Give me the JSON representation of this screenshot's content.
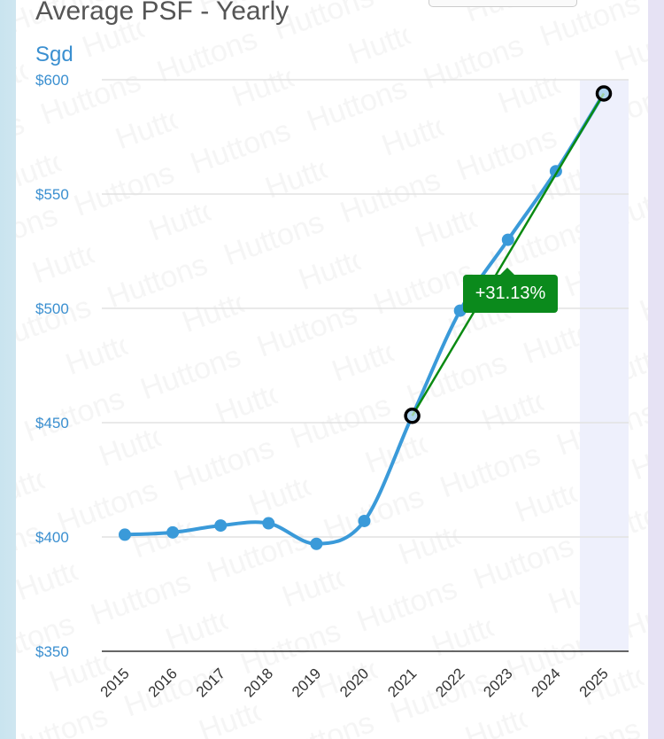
{
  "header": {
    "title": "Average PSF - Yearly",
    "unit": "Sgd"
  },
  "watermark": "Huttons",
  "colors": {
    "line": "#3a9ad9",
    "trend": "#0a8a12",
    "highlight": "#eef0fc",
    "tooltip": "#0b8a1c"
  },
  "chart_data": {
    "type": "line",
    "title": "Average PSF - Yearly",
    "ylabel": "Sgd",
    "x": [
      "2015",
      "2016",
      "2017",
      "2018",
      "2019",
      "2020",
      "2021",
      "2022",
      "2023",
      "2024",
      "2025"
    ],
    "series": [
      {
        "name": "Average PSF",
        "values": [
          401,
          402,
          405,
          406,
          397,
          407,
          453,
          499,
          530,
          560,
          594
        ]
      }
    ],
    "ylim": [
      350,
      600
    ],
    "yticks": [
      350,
      400,
      450,
      500,
      550,
      600
    ],
    "ytick_labels": [
      "$350",
      "$400",
      "$450",
      "$500",
      "$550",
      "$600"
    ],
    "highlight_category": "2025",
    "trend": {
      "from": "2021",
      "to": "2025",
      "label": "+31.13%"
    }
  }
}
